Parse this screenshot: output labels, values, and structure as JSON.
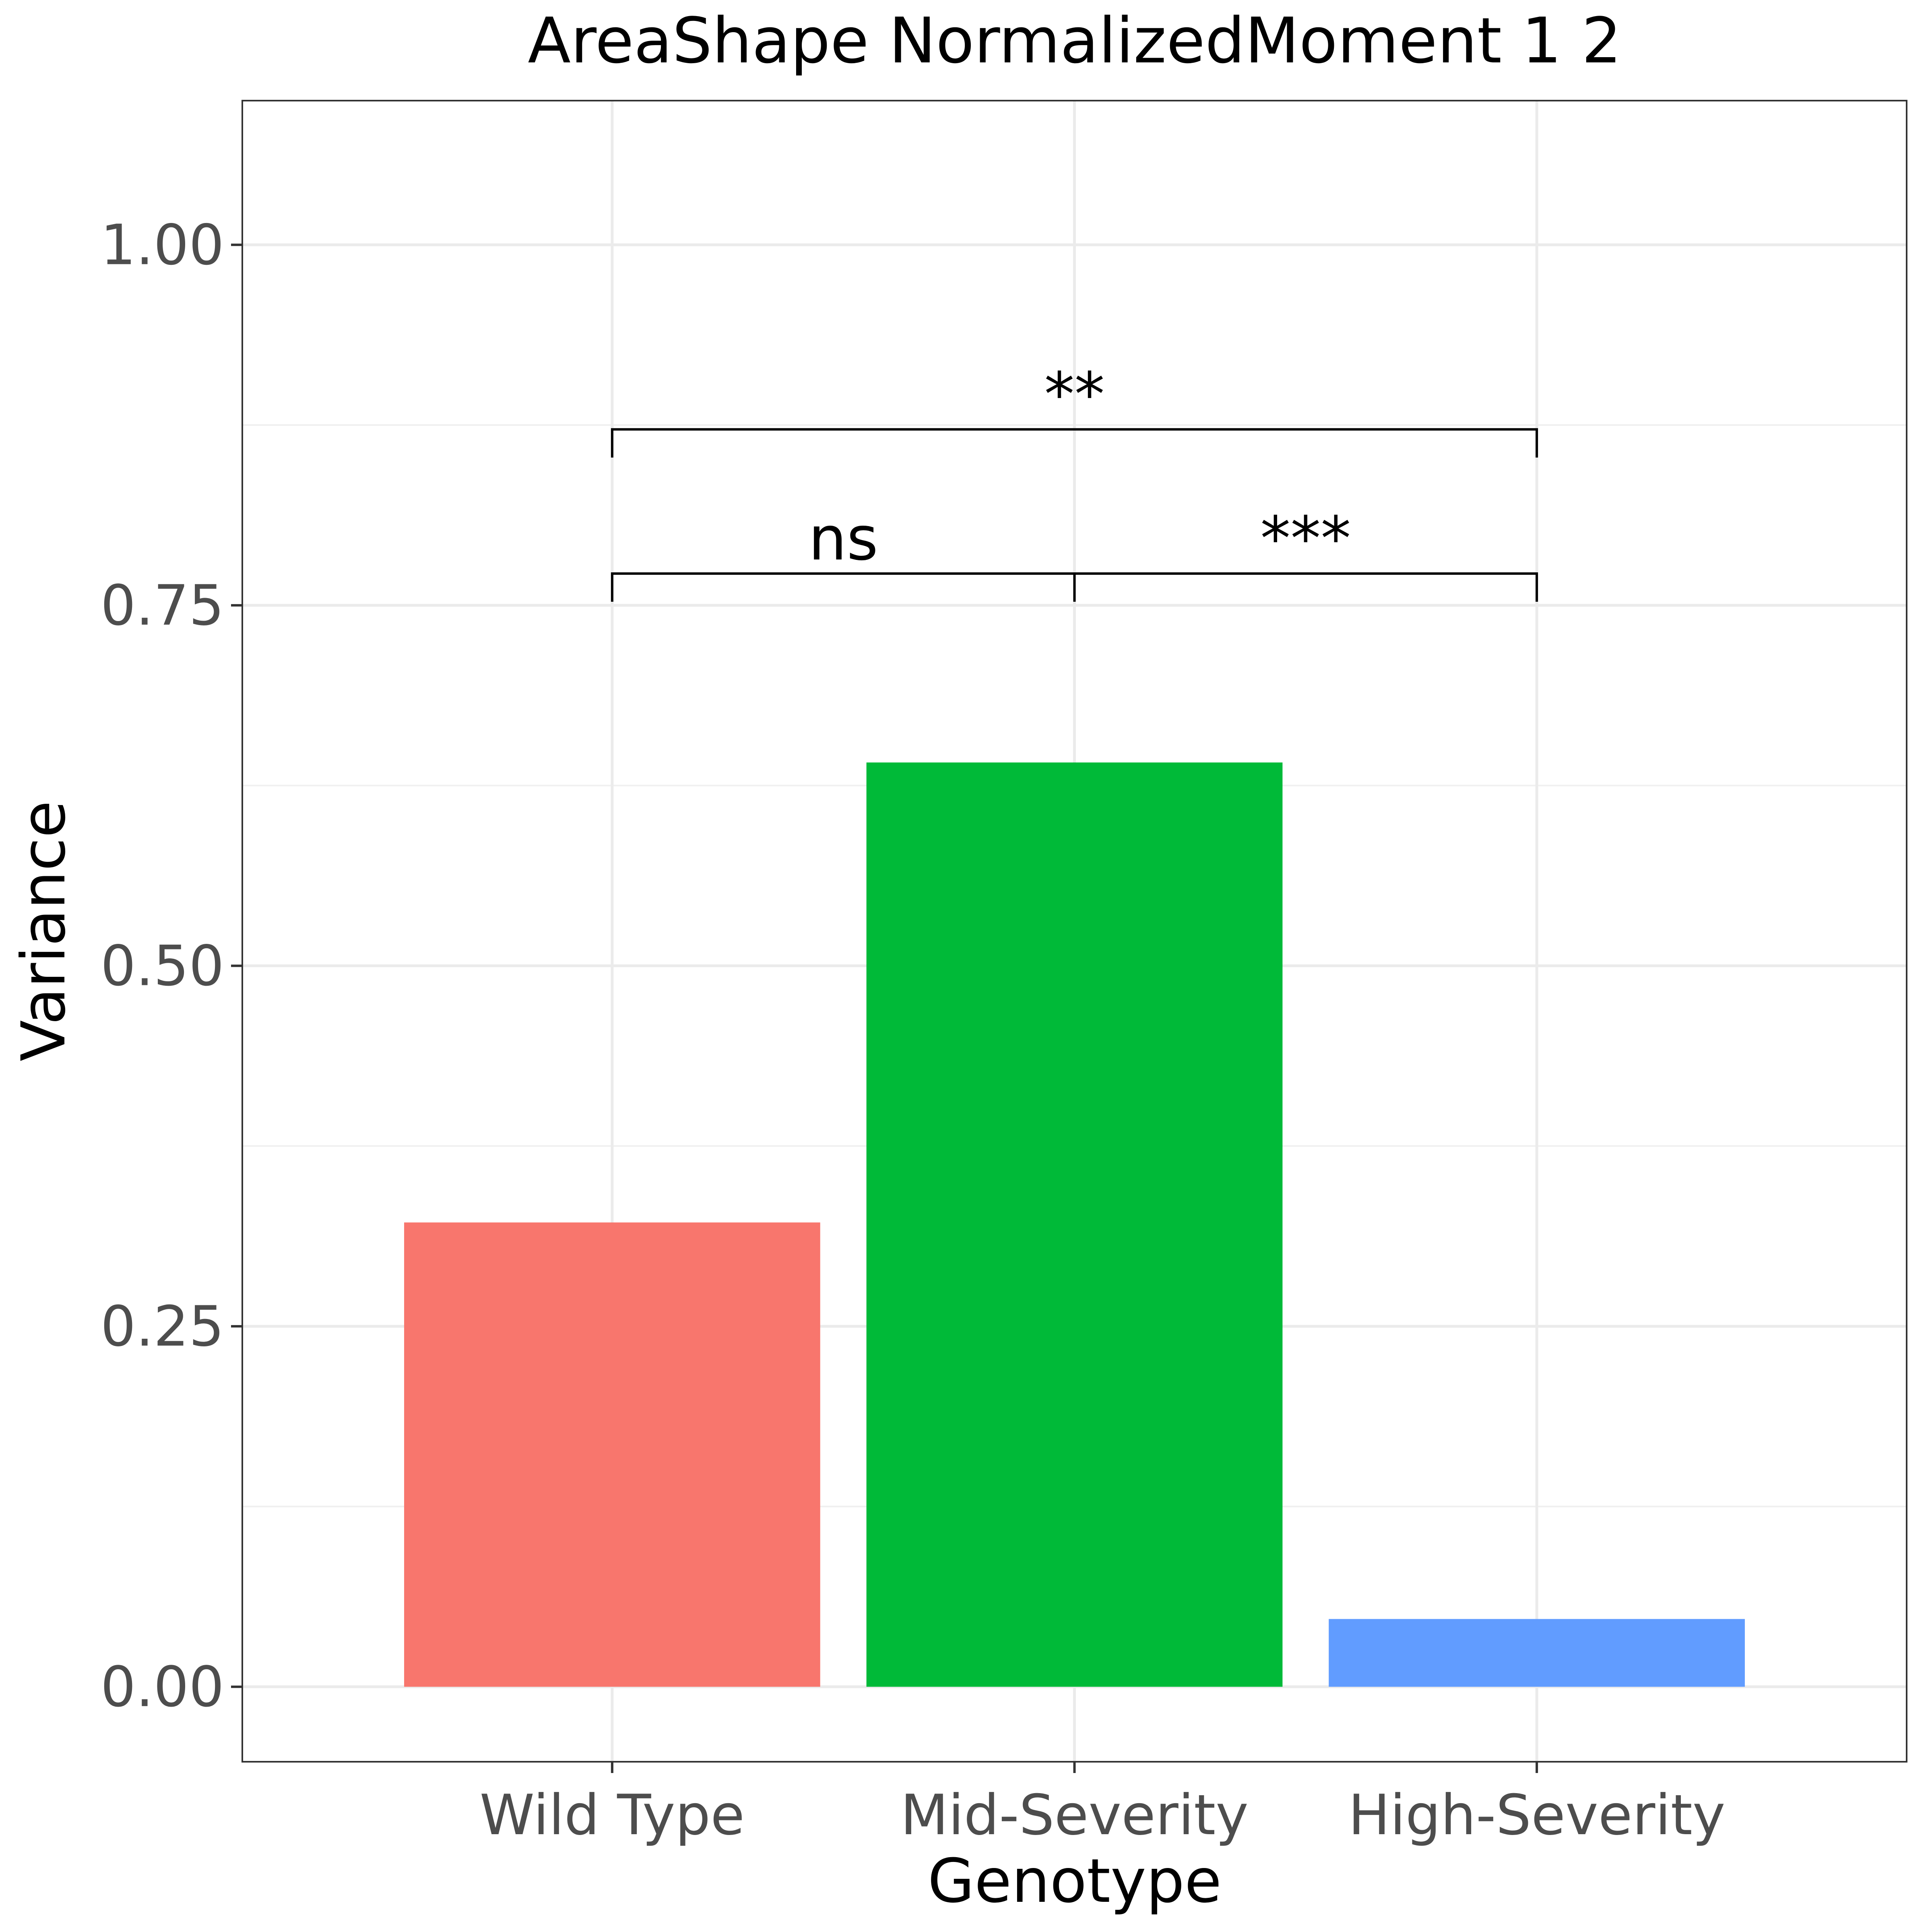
{
  "chart_data": {
    "type": "bar",
    "title": "AreaShape NormalizedMoment 1 2",
    "xlabel": "Genotype",
    "ylabel": "Variance",
    "categories": [
      "Wild Type",
      "Mid-Severity",
      "High-Severity"
    ],
    "values": [
      0.322,
      0.641,
      0.047
    ],
    "colors": [
      "#F8766D",
      "#00BA38",
      "#619CFF"
    ],
    "ylim": [
      -0.052,
      1.1
    ],
    "yticks": [
      0.0,
      0.25,
      0.5,
      0.75,
      1.0
    ],
    "ytick_labels": [
      "0.00",
      "0.25",
      "0.50",
      "0.75",
      "1.00"
    ],
    "grid": true,
    "legend": "none",
    "annotations": [
      {
        "from": "Wild Type",
        "to": "Mid-Severity",
        "y": 0.772,
        "label": "ns"
      },
      {
        "from": "Mid-Severity",
        "to": "High-Severity",
        "y": 0.772,
        "label": "***"
      },
      {
        "from": "Wild Type",
        "to": "High-Severity",
        "y": 0.872,
        "label": "**"
      }
    ]
  }
}
